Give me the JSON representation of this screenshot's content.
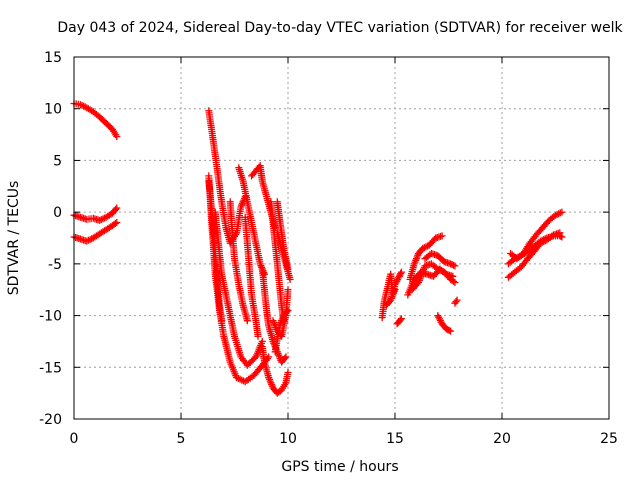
{
  "chart_data": {
    "type": "scatter",
    "title": "Day 043 of 2024, Sidereal Day-to-day VTEC variation (SDTVAR) for receiver welk",
    "xlabel": "GPS time / hours",
    "ylabel": "SDTVAR / TECUs",
    "xlim": [
      0,
      25
    ],
    "ylim": [
      -20,
      15
    ],
    "xticks": [
      0,
      5,
      10,
      15,
      20,
      25
    ],
    "yticks": [
      -20,
      -15,
      -10,
      -5,
      0,
      5,
      10,
      15
    ],
    "grid": true,
    "marker": "+",
    "color": "#ff0000",
    "series": [
      {
        "name": "s1",
        "points": [
          [
            0.0,
            10.5
          ],
          [
            0.3,
            10.4
          ],
          [
            0.6,
            10.1
          ],
          [
            0.9,
            9.7
          ],
          [
            1.2,
            9.2
          ],
          [
            1.5,
            8.6
          ],
          [
            1.8,
            8.0
          ],
          [
            2.0,
            7.3
          ]
        ]
      },
      {
        "name": "s2",
        "points": [
          [
            0.0,
            -0.3
          ],
          [
            0.3,
            -0.5
          ],
          [
            0.6,
            -0.7
          ],
          [
            0.9,
            -0.6
          ],
          [
            1.2,
            -0.8
          ],
          [
            1.5,
            -0.5
          ],
          [
            1.8,
            -0.1
          ],
          [
            2.0,
            0.4
          ]
        ]
      },
      {
        "name": "s3",
        "points": [
          [
            0.0,
            -2.4
          ],
          [
            0.3,
            -2.6
          ],
          [
            0.6,
            -2.8
          ],
          [
            0.9,
            -2.5
          ],
          [
            1.2,
            -2.1
          ],
          [
            1.5,
            -1.7
          ],
          [
            1.8,
            -1.3
          ],
          [
            2.0,
            -1.0
          ]
        ]
      },
      {
        "name": "s4",
        "points": [
          [
            6.3,
            9.8
          ],
          [
            6.5,
            7.0
          ],
          [
            6.7,
            4.0
          ],
          [
            6.9,
            1.0
          ],
          [
            7.1,
            -1.5
          ],
          [
            7.3,
            -3.0
          ],
          [
            7.6,
            -2.0
          ],
          [
            7.8,
            0.5
          ],
          [
            8.0,
            1.5
          ]
        ]
      },
      {
        "name": "s5",
        "points": [
          [
            6.3,
            3.5
          ],
          [
            6.4,
            0.0
          ],
          [
            6.5,
            -3.0
          ],
          [
            6.6,
            -6.0
          ],
          [
            6.8,
            -9.5
          ],
          [
            7.0,
            -12.0
          ],
          [
            7.3,
            -14.5
          ],
          [
            7.6,
            -16.0
          ],
          [
            8.0,
            -16.4
          ],
          [
            8.4,
            -15.8
          ],
          [
            8.8,
            -14.8
          ],
          [
            9.1,
            -14.0
          ]
        ]
      },
      {
        "name": "s6",
        "points": [
          [
            6.3,
            3.0
          ],
          [
            6.4,
            1.0
          ],
          [
            6.5,
            -1.5
          ],
          [
            6.6,
            -4.0
          ],
          [
            6.7,
            -6.5
          ],
          [
            6.8,
            -9.0
          ],
          [
            6.9,
            -10.5
          ]
        ]
      },
      {
        "name": "s7",
        "points": [
          [
            6.6,
            0.0
          ],
          [
            6.7,
            -2.0
          ],
          [
            6.8,
            -4.0
          ],
          [
            6.9,
            -6.0
          ],
          [
            7.1,
            -8.0
          ],
          [
            7.3,
            -10.0
          ],
          [
            7.5,
            -12.0
          ],
          [
            7.8,
            -14.0
          ],
          [
            8.1,
            -14.8
          ],
          [
            8.5,
            -14.0
          ],
          [
            8.8,
            -12.5
          ]
        ]
      },
      {
        "name": "s8",
        "points": [
          [
            7.7,
            4.3
          ],
          [
            7.9,
            3.0
          ],
          [
            8.1,
            1.0
          ],
          [
            8.3,
            -1.0
          ],
          [
            8.5,
            -3.0
          ],
          [
            8.7,
            -5.0
          ],
          [
            8.9,
            -6.0
          ]
        ]
      },
      {
        "name": "s9",
        "points": [
          [
            7.3,
            1.0
          ],
          [
            7.4,
            -2.0
          ],
          [
            7.5,
            -4.5
          ],
          [
            7.7,
            -7.0
          ],
          [
            7.9,
            -9.0
          ],
          [
            8.1,
            -10.5
          ]
        ]
      },
      {
        "name": "s10",
        "points": [
          [
            8.0,
            -0.5
          ],
          [
            8.1,
            -3.0
          ],
          [
            8.2,
            -5.5
          ],
          [
            8.3,
            -8.0
          ],
          [
            8.5,
            -10.5
          ],
          [
            8.6,
            -12.0
          ]
        ]
      },
      {
        "name": "s11",
        "points": [
          [
            8.3,
            3.5
          ],
          [
            8.7,
            4.5
          ],
          [
            8.8,
            3.0
          ],
          [
            9.0,
            1.5
          ],
          [
            9.2,
            0.0
          ],
          [
            9.4,
            -1.5
          ]
        ]
      },
      {
        "name": "s12",
        "points": [
          [
            8.8,
            -5.5
          ],
          [
            8.9,
            -7.5
          ],
          [
            9.0,
            -9.5
          ],
          [
            9.1,
            -11.0
          ],
          [
            9.3,
            -12.5
          ],
          [
            9.5,
            -13.5
          ],
          [
            9.7,
            -14.5
          ],
          [
            9.9,
            -14.0
          ]
        ]
      },
      {
        "name": "s13",
        "points": [
          [
            9.2,
            1.0
          ],
          [
            9.3,
            -1.0
          ],
          [
            9.4,
            -3.0
          ],
          [
            9.5,
            -5.0
          ],
          [
            9.6,
            -7.0
          ],
          [
            9.7,
            -9.0
          ],
          [
            9.8,
            -10.5
          ]
        ]
      },
      {
        "name": "s14",
        "points": [
          [
            9.5,
            1.0
          ],
          [
            9.6,
            -0.5
          ],
          [
            9.7,
            -2.0
          ],
          [
            9.8,
            -3.5
          ],
          [
            9.9,
            -4.5
          ],
          [
            10.0,
            -5.5
          ]
        ]
      },
      {
        "name": "s15",
        "points": [
          [
            9.5,
            -2.0
          ],
          [
            9.7,
            -3.5
          ],
          [
            9.9,
            -5.0
          ],
          [
            10.1,
            -6.5
          ]
        ]
      },
      {
        "name": "s16",
        "points": [
          [
            8.8,
            -13.0
          ],
          [
            8.9,
            -14.5
          ],
          [
            9.1,
            -16.0
          ],
          [
            9.3,
            -17.0
          ],
          [
            9.5,
            -17.5
          ],
          [
            9.7,
            -17.2
          ],
          [
            9.9,
            -16.5
          ],
          [
            10.0,
            -15.5
          ]
        ]
      },
      {
        "name": "s17",
        "points": [
          [
            9.3,
            -10.5
          ],
          [
            9.5,
            -11.5
          ],
          [
            9.7,
            -12.0
          ],
          [
            9.9,
            -10.0
          ],
          [
            10.0,
            -7.5
          ]
        ]
      },
      {
        "name": "s18",
        "points": [
          [
            9.4,
            -13.5
          ],
          [
            9.6,
            -11.0
          ],
          [
            9.8,
            -10.0
          ],
          [
            10.0,
            -9.5
          ]
        ]
      },
      {
        "name": "s19",
        "points": [
          [
            14.4,
            -10.2
          ],
          [
            14.5,
            -8.6
          ],
          [
            14.8,
            -6.0
          ],
          [
            14.9,
            -8.0
          ],
          [
            15.0,
            -7.0
          ],
          [
            15.2,
            -6.2
          ],
          [
            15.3,
            -5.8
          ]
        ]
      },
      {
        "name": "s20",
        "points": [
          [
            14.6,
            -9.0
          ],
          [
            14.8,
            -8.5
          ],
          [
            15.0,
            -7.5
          ]
        ]
      },
      {
        "name": "s21",
        "points": [
          [
            15.1,
            -10.8
          ],
          [
            15.3,
            -10.3
          ]
        ]
      },
      {
        "name": "s22",
        "points": [
          [
            15.7,
            -6.5
          ],
          [
            15.9,
            -5.0
          ],
          [
            16.1,
            -4.0
          ],
          [
            16.3,
            -3.5
          ],
          [
            16.6,
            -3.2
          ],
          [
            16.9,
            -2.5
          ],
          [
            17.2,
            -2.3
          ]
        ]
      },
      {
        "name": "s23",
        "points": [
          [
            15.6,
            -8.0
          ],
          [
            15.9,
            -6.5
          ],
          [
            16.2,
            -5.8
          ],
          [
            16.5,
            -6.0
          ],
          [
            16.8,
            -6.2
          ],
          [
            17.1,
            -5.5
          ],
          [
            17.4,
            -6.0
          ],
          [
            17.7,
            -6.2
          ]
        ]
      },
      {
        "name": "s24",
        "points": [
          [
            15.8,
            -7.5
          ],
          [
            16.1,
            -6.8
          ],
          [
            16.4,
            -5.2
          ],
          [
            16.7,
            -5.0
          ],
          [
            17.0,
            -5.5
          ],
          [
            17.3,
            -5.8
          ],
          [
            17.6,
            -6.5
          ],
          [
            17.8,
            -6.8
          ]
        ]
      },
      {
        "name": "s25",
        "points": [
          [
            16.4,
            -4.5
          ],
          [
            16.7,
            -4.0
          ],
          [
            17.0,
            -4.2
          ],
          [
            17.3,
            -4.8
          ],
          [
            17.6,
            -5.0
          ],
          [
            17.8,
            -5.2
          ]
        ]
      },
      {
        "name": "s26",
        "points": [
          [
            17.0,
            -10.0
          ],
          [
            17.2,
            -10.8
          ],
          [
            17.4,
            -11.3
          ],
          [
            17.6,
            -11.5
          ]
        ]
      },
      {
        "name": "s27",
        "points": [
          [
            17.8,
            -8.8
          ],
          [
            17.9,
            -8.5
          ]
        ]
      },
      {
        "name": "s28",
        "points": [
          [
            20.3,
            -6.3
          ],
          [
            20.6,
            -5.8
          ],
          [
            20.9,
            -5.3
          ],
          [
            21.2,
            -4.5
          ],
          [
            21.5,
            -3.8
          ],
          [
            21.8,
            -3.0
          ],
          [
            22.1,
            -2.7
          ],
          [
            22.4,
            -2.2
          ],
          [
            22.7,
            -2.0
          ]
        ]
      },
      {
        "name": "s29",
        "points": [
          [
            20.3,
            -5.0
          ],
          [
            20.6,
            -4.5
          ],
          [
            20.9,
            -4.2
          ],
          [
            21.2,
            -3.8
          ],
          [
            21.5,
            -3.3
          ],
          [
            21.8,
            -2.8
          ],
          [
            22.1,
            -2.5
          ],
          [
            22.4,
            -2.3
          ],
          [
            22.7,
            -2.3
          ],
          [
            22.8,
            -2.4
          ]
        ]
      },
      {
        "name": "s30",
        "points": [
          [
            20.4,
            -4.0
          ],
          [
            20.7,
            -4.5
          ],
          [
            21.0,
            -4.0
          ],
          [
            21.3,
            -3.0
          ],
          [
            21.6,
            -2.2
          ],
          [
            21.9,
            -1.5
          ],
          [
            22.2,
            -0.8
          ],
          [
            22.5,
            -0.3
          ],
          [
            22.8,
            0.0
          ]
        ]
      }
    ]
  }
}
